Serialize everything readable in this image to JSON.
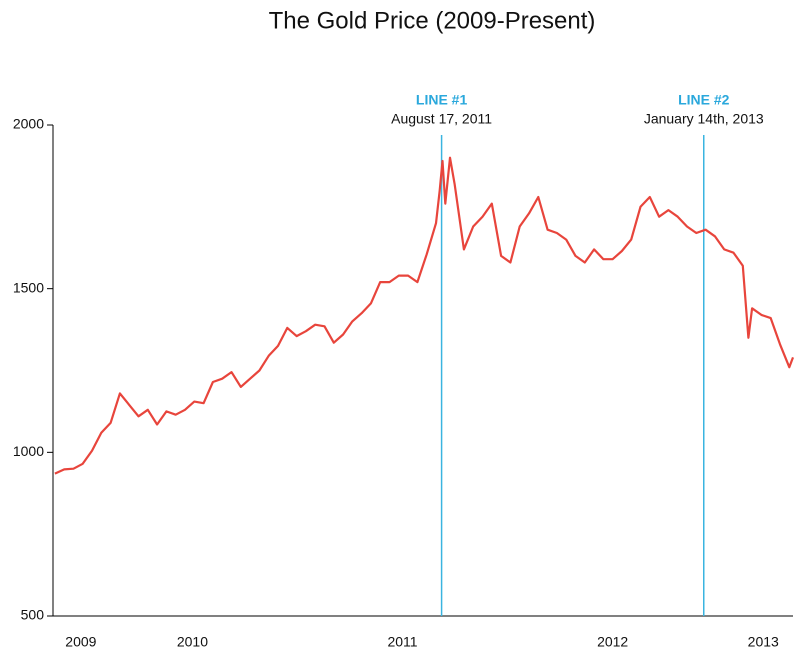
{
  "chart_data": {
    "type": "line",
    "title": "The Gold Price (2009-Present)",
    "x": [
      2009.55,
      2009.6,
      2009.65,
      2009.7,
      2009.75,
      2009.8,
      2009.85,
      2009.9,
      2009.95,
      2010.0,
      2010.05,
      2010.1,
      2010.15,
      2010.2,
      2010.25,
      2010.3,
      2010.35,
      2010.4,
      2010.45,
      2010.5,
      2010.55,
      2010.6,
      2010.65,
      2010.7,
      2010.75,
      2010.8,
      2010.85,
      2010.9,
      2010.95,
      2011.0,
      2011.05,
      2011.1,
      2011.15,
      2011.2,
      2011.25,
      2011.3,
      2011.35,
      2011.4,
      2011.45,
      2011.5,
      2011.55,
      2011.6,
      2011.62,
      2011.635,
      2011.65,
      2011.675,
      2011.7,
      2011.75,
      2011.8,
      2011.85,
      2011.9,
      2011.95,
      2012.0,
      2012.05,
      2012.1,
      2012.15,
      2012.2,
      2012.25,
      2012.3,
      2012.35,
      2012.4,
      2012.45,
      2012.5,
      2012.55,
      2012.6,
      2012.65,
      2012.7,
      2012.75,
      2012.8,
      2012.85,
      2012.9,
      2012.95,
      2013.0,
      2013.05,
      2013.1,
      2013.15,
      2013.2,
      2013.25,
      2013.28,
      2013.3,
      2013.35,
      2013.4,
      2013.45,
      2013.5,
      2013.52
    ],
    "values": [
      935,
      948,
      950,
      965,
      1005,
      1060,
      1090,
      1180,
      1145,
      1110,
      1130,
      1085,
      1125,
      1115,
      1130,
      1155,
      1150,
      1215,
      1225,
      1245,
      1200,
      1225,
      1250,
      1295,
      1325,
      1380,
      1355,
      1370,
      1390,
      1385,
      1335,
      1360,
      1400,
      1425,
      1455,
      1520,
      1520,
      1540,
      1540,
      1520,
      1605,
      1700,
      1800,
      1890,
      1760,
      1900,
      1820,
      1620,
      1690,
      1720,
      1760,
      1600,
      1580,
      1690,
      1730,
      1780,
      1680,
      1670,
      1650,
      1600,
      1580,
      1620,
      1590,
      1590,
      1615,
      1650,
      1750,
      1780,
      1720,
      1740,
      1720,
      1690,
      1670,
      1680,
      1660,
      1620,
      1610,
      1570,
      1350,
      1440,
      1420,
      1410,
      1330,
      1260,
      1290
    ],
    "color": "#e8453c",
    "xlim": [
      2009.54,
      2013.52
    ],
    "xticks": [
      {
        "value": 2009.69,
        "label": "2009"
      },
      {
        "value": 2010.29,
        "label": "2010"
      },
      {
        "value": 2011.42,
        "label": "2011"
      },
      {
        "value": 2012.55,
        "label": "2012"
      },
      {
        "value": 2013.36,
        "label": "2013"
      }
    ],
    "ylim": [
      500,
      2000
    ],
    "yticks": [
      500,
      1000,
      1500,
      2000
    ],
    "annotations": [
      {
        "x": 2011.63,
        "label": "LINE #1",
        "text": "August 17, 2011",
        "color": "#3ab4e0"
      },
      {
        "x": 2013.04,
        "label": "LINE #2",
        "text": "January 14th, 2013",
        "color": "#3ab4e0"
      }
    ]
  }
}
